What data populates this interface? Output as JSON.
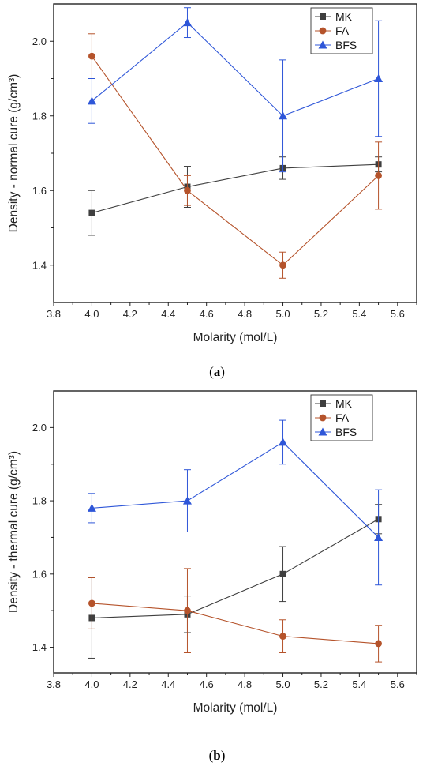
{
  "chart_data": [
    {
      "type": "line",
      "caption": "(a)",
      "caption_parts": {
        "open": "(",
        "letter": "a",
        "close": ")"
      },
      "xlabel": "Molarity (mol/L)",
      "ylabel": "Density - normal cure (g/cm³)",
      "xlim": [
        3.8,
        5.7
      ],
      "ylim": [
        1.3,
        2.1
      ],
      "x_ticks": [
        3.8,
        4.0,
        4.2,
        4.4,
        4.6,
        4.8,
        5.0,
        5.2,
        5.4,
        5.6
      ],
      "x_tick_labels": [
        "3.8",
        "4.0",
        "4.2",
        "4.4",
        "4.6",
        "4.8",
        "5.0",
        "5.2",
        "5.4",
        "5.6"
      ],
      "y_ticks": [
        1.4,
        1.6,
        1.8,
        2.0
      ],
      "y_tick_labels": [
        "1.4",
        "1.6",
        "1.8",
        "2.0"
      ],
      "grid": false,
      "legend_position": "top-right",
      "x": [
        4.0,
        4.5,
        5.0,
        5.5
      ],
      "series": [
        {
          "name": "MK",
          "marker": "square",
          "color": "#3f3f3f",
          "values": [
            1.54,
            1.61,
            1.66,
            1.67
          ],
          "errors": [
            0.06,
            0.055,
            0.03,
            0.02
          ]
        },
        {
          "name": "FA",
          "marker": "circle",
          "color": "#b5532b",
          "values": [
            1.96,
            1.6,
            1.4,
            1.64
          ],
          "errors": [
            0.06,
            0.04,
            0.035,
            0.09
          ]
        },
        {
          "name": "BFS",
          "marker": "triangle",
          "color": "#2e56d8",
          "values": [
            1.84,
            2.05,
            1.8,
            1.9
          ],
          "errors": [
            0.06,
            0.04,
            0.15,
            0.155
          ]
        }
      ]
    },
    {
      "type": "line",
      "caption": "(b)",
      "caption_parts": {
        "open": "(",
        "letter": "b",
        "close": ")"
      },
      "xlabel": "Molarity (mol/L)",
      "ylabel": "Density - thermal cure (g/cm³)",
      "xlim": [
        3.8,
        5.7
      ],
      "ylim": [
        1.33,
        2.1
      ],
      "x_ticks": [
        3.8,
        4.0,
        4.2,
        4.4,
        4.6,
        4.8,
        5.0,
        5.2,
        5.4,
        5.6
      ],
      "x_tick_labels": [
        "3.8",
        "4.0",
        "4.2",
        "4.4",
        "4.6",
        "4.8",
        "5.0",
        "5.2",
        "5.4",
        "5.6"
      ],
      "y_ticks": [
        1.4,
        1.6,
        1.8,
        2.0
      ],
      "y_tick_labels": [
        "1.4",
        "1.6",
        "1.8",
        "2.0"
      ],
      "grid": false,
      "legend_position": "top-right",
      "x": [
        4.0,
        4.5,
        5.0,
        5.5
      ],
      "series": [
        {
          "name": "MK",
          "marker": "square",
          "color": "#3f3f3f",
          "values": [
            1.48,
            1.49,
            1.6,
            1.75
          ],
          "errors": [
            0.11,
            0.05,
            0.075,
            0.04
          ]
        },
        {
          "name": "FA",
          "marker": "circle",
          "color": "#b5532b",
          "values": [
            1.52,
            1.5,
            1.43,
            1.41
          ],
          "errors": [
            0.07,
            0.115,
            0.045,
            0.05
          ]
        },
        {
          "name": "BFS",
          "marker": "triangle",
          "color": "#2e56d8",
          "values": [
            1.78,
            1.8,
            1.96,
            1.7
          ],
          "errors": [
            0.04,
            0.085,
            0.06,
            0.13
          ]
        }
      ]
    }
  ]
}
